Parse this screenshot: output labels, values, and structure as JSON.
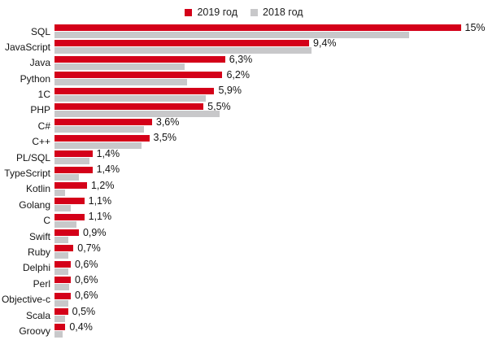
{
  "chart_data": {
    "type": "bar",
    "orientation": "horizontal",
    "title": "",
    "xlabel": "",
    "ylabel": "",
    "xlim": [
      0,
      16.4
    ],
    "grid": false,
    "legend_position": "top center",
    "value_labels_shown_for": "2019 series only",
    "categories": [
      "SQL",
      "JavaScript",
      "Java",
      "Python",
      "1C",
      "PHP",
      "C#",
      "C++",
      "PL/SQL",
      "TypeScript",
      "Kotlin",
      "Golang",
      "C",
      "Swift",
      "Ruby",
      "Delphi",
      "Perl",
      "Objective-c",
      "Scala",
      "Groovy"
    ],
    "series": [
      {
        "name": "2019 год",
        "color": "#d40019",
        "values": [
          15,
          9.4,
          6.3,
          6.2,
          5.9,
          5.5,
          3.6,
          3.5,
          1.4,
          1.4,
          1.2,
          1.1,
          1.1,
          0.9,
          0.7,
          0.6,
          0.6,
          0.6,
          0.5,
          0.4
        ],
        "value_labels": [
          "15%",
          "9,4%",
          "6,3%",
          "6,2%",
          "5,9%",
          "5,5%",
          "3,6%",
          "3,5%",
          "1,4%",
          "1,4%",
          "1,2%",
          "1,1%",
          "1,1%",
          "0,9%",
          "0,7%",
          "0,6%",
          "0,6%",
          "0,6%",
          "0,5%",
          "0,4%"
        ]
      },
      {
        "name": "2018 год",
        "color": "#c8c8ca",
        "values": [
          13.1,
          9.5,
          4.8,
          4.9,
          5.6,
          6.1,
          3.3,
          3.2,
          1.3,
          0.9,
          0.4,
          0.6,
          0.8,
          0.5,
          0.5,
          0.5,
          0.55,
          0.5,
          0.4,
          0.3
        ]
      }
    ]
  },
  "colors": {
    "bar_2019": "#d40019",
    "bar_2018": "#c8c8ca",
    "text": "#141414",
    "background": "#ffffff"
  }
}
